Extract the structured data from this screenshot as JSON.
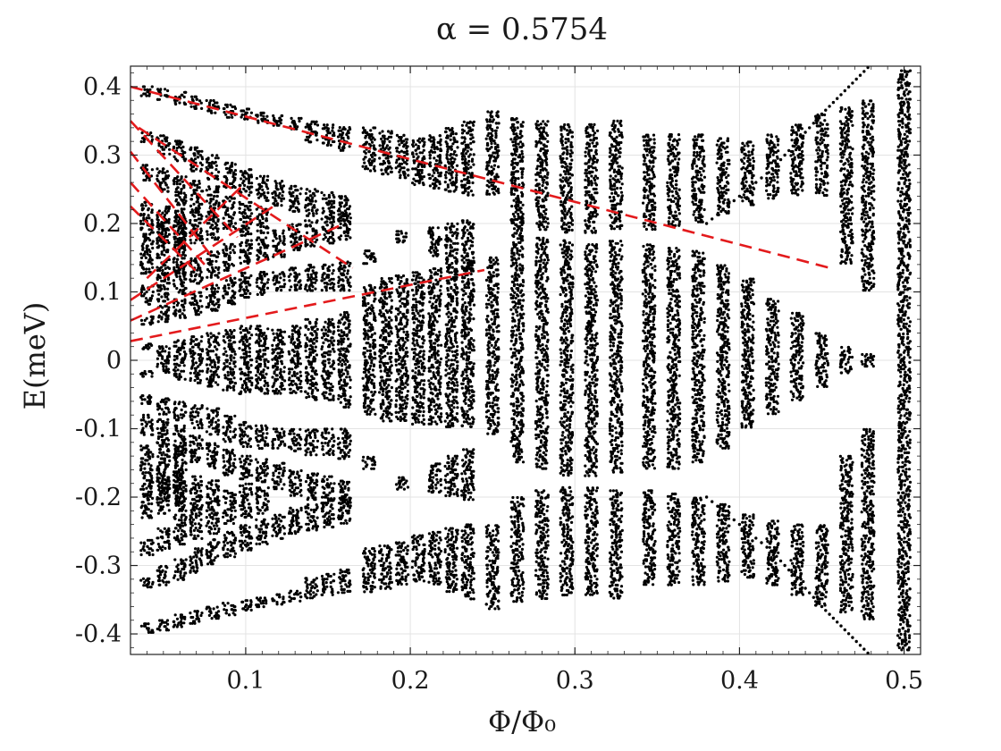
{
  "chart_data": {
    "type": "scatter",
    "title": "α = 0.5754",
    "xlabel": "Φ/Φ₀",
    "ylabel": "E(meV)",
    "xlim": [
      0.03,
      0.51
    ],
    "ylim": [
      -0.43,
      0.43
    ],
    "grid": true,
    "x_ticks": [
      {
        "value": 0.1,
        "label": "0.1"
      },
      {
        "value": 0.2,
        "label": "0.2"
      },
      {
        "value": 0.3,
        "label": "0.3"
      },
      {
        "value": 0.4,
        "label": "0.4"
      },
      {
        "value": 0.5,
        "label": "0.5"
      }
    ],
    "y_ticks": [
      {
        "value": 0.4,
        "label": "0.4"
      },
      {
        "value": 0.3,
        "label": "0.3"
      },
      {
        "value": 0.2,
        "label": "0.2"
      },
      {
        "value": 0.1,
        "label": "0.1"
      },
      {
        "value": 0.0,
        "label": "0"
      },
      {
        "value": -0.1,
        "label": "-0.1"
      },
      {
        "value": -0.2,
        "label": "-0.2"
      },
      {
        "value": -0.3,
        "label": "-0.3"
      },
      {
        "value": -0.4,
        "label": "-0.4"
      }
    ],
    "marker_color": "#000000",
    "band_columns": [
      {
        "x": 0.04,
        "bands": [
          [
            0.385,
            0.4
          ],
          [
            0.318,
            0.334
          ],
          [
            0.262,
            0.286
          ],
          [
            0.195,
            0.232
          ],
          [
            0.125,
            0.2
          ],
          [
            0.08,
            0.11
          ],
          [
            0.05,
            0.065
          ],
          [
            0.015,
            0.025
          ],
          [
            -0.025,
            -0.015
          ],
          [
            -0.065,
            -0.05
          ],
          [
            -0.11,
            -0.08
          ],
          [
            -0.2,
            -0.125
          ],
          [
            -0.232,
            -0.195
          ],
          [
            -0.286,
            -0.262
          ],
          [
            -0.334,
            -0.318
          ],
          [
            -0.4,
            -0.385
          ]
        ]
      },
      {
        "x": 0.05,
        "bands": [
          [
            0.38,
            0.397
          ],
          [
            0.3,
            0.33
          ],
          [
            0.245,
            0.28
          ],
          [
            0.17,
            0.225
          ],
          [
            0.12,
            0.205
          ],
          [
            0.085,
            0.125
          ],
          [
            0.055,
            0.08
          ],
          [
            -0.02,
            0.02
          ],
          [
            -0.08,
            -0.055
          ],
          [
            -0.125,
            -0.085
          ],
          [
            -0.205,
            -0.12
          ],
          [
            -0.225,
            -0.17
          ],
          [
            -0.28,
            -0.245
          ],
          [
            -0.33,
            -0.3
          ],
          [
            -0.397,
            -0.38
          ]
        ]
      },
      {
        "x": 0.06,
        "bands": [
          [
            0.372,
            0.392
          ],
          [
            0.29,
            0.322
          ],
          [
            0.225,
            0.27
          ],
          [
            0.16,
            0.222
          ],
          [
            0.125,
            0.21
          ],
          [
            0.095,
            0.14
          ],
          [
            0.06,
            0.09
          ],
          [
            -0.03,
            0.03
          ],
          [
            -0.09,
            -0.06
          ],
          [
            -0.14,
            -0.095
          ],
          [
            -0.21,
            -0.125
          ],
          [
            -0.222,
            -0.16
          ],
          [
            -0.27,
            -0.225
          ],
          [
            -0.322,
            -0.29
          ],
          [
            -0.392,
            -0.372
          ]
        ]
      },
      {
        "x": 0.07,
        "bands": [
          [
            0.366,
            0.386
          ],
          [
            0.275,
            0.312
          ],
          [
            0.215,
            0.262
          ],
          [
            0.17,
            0.22
          ],
          [
            0.11,
            0.15
          ],
          [
            0.065,
            0.1
          ],
          [
            -0.035,
            0.035
          ],
          [
            -0.1,
            -0.065
          ],
          [
            -0.15,
            -0.11
          ],
          [
            -0.22,
            -0.17
          ],
          [
            -0.262,
            -0.215
          ],
          [
            -0.312,
            -0.275
          ],
          [
            -0.386,
            -0.366
          ]
        ]
      },
      {
        "x": 0.08,
        "bands": [
          [
            0.36,
            0.38
          ],
          [
            0.262,
            0.3
          ],
          [
            0.205,
            0.255
          ],
          [
            0.175,
            0.21
          ],
          [
            0.12,
            0.16
          ],
          [
            0.07,
            0.11
          ],
          [
            -0.04,
            0.04
          ],
          [
            -0.11,
            -0.07
          ],
          [
            -0.16,
            -0.12
          ],
          [
            -0.21,
            -0.175
          ],
          [
            -0.255,
            -0.205
          ],
          [
            -0.3,
            -0.262
          ],
          [
            -0.38,
            -0.36
          ]
        ]
      },
      {
        "x": 0.09,
        "bands": [
          [
            0.354,
            0.374
          ],
          [
            0.25,
            0.29
          ],
          [
            0.19,
            0.24
          ],
          [
            0.13,
            0.17
          ],
          [
            0.08,
            0.12
          ],
          [
            -0.045,
            0.045
          ],
          [
            -0.12,
            -0.08
          ],
          [
            -0.17,
            -0.13
          ],
          [
            -0.24,
            -0.19
          ],
          [
            -0.29,
            -0.25
          ],
          [
            -0.374,
            -0.354
          ]
        ]
      },
      {
        "x": 0.1,
        "bands": [
          [
            0.35,
            0.368
          ],
          [
            0.24,
            0.28
          ],
          [
            0.18,
            0.232
          ],
          [
            0.14,
            0.176
          ],
          [
            0.09,
            0.128
          ],
          [
            -0.05,
            0.05
          ],
          [
            -0.128,
            -0.09
          ],
          [
            -0.176,
            -0.14
          ],
          [
            -0.232,
            -0.18
          ],
          [
            -0.28,
            -0.24
          ],
          [
            -0.368,
            -0.35
          ]
        ]
      },
      {
        "x": 0.11,
        "bands": [
          [
            0.346,
            0.362
          ],
          [
            0.232,
            0.27
          ],
          [
            0.185,
            0.225
          ],
          [
            0.145,
            0.18
          ],
          [
            0.095,
            0.13
          ],
          [
            -0.05,
            0.05
          ],
          [
            -0.13,
            -0.095
          ],
          [
            -0.18,
            -0.145
          ],
          [
            -0.225,
            -0.185
          ],
          [
            -0.27,
            -0.232
          ],
          [
            -0.362,
            -0.346
          ]
        ]
      },
      {
        "x": 0.12,
        "bands": [
          [
            0.342,
            0.358
          ],
          [
            0.225,
            0.262
          ],
          [
            0.15,
            0.19
          ],
          [
            0.1,
            0.13
          ],
          [
            -0.05,
            0.045
          ],
          [
            -0.13,
            -0.1
          ],
          [
            -0.19,
            -0.15
          ],
          [
            -0.262,
            -0.225
          ],
          [
            -0.358,
            -0.342
          ]
        ]
      },
      {
        "x": 0.13,
        "bands": [
          [
            0.336,
            0.354
          ],
          [
            0.215,
            0.255
          ],
          [
            0.16,
            0.2
          ],
          [
            0.1,
            0.135
          ],
          [
            -0.05,
            0.05
          ],
          [
            -0.135,
            -0.1
          ],
          [
            -0.2,
            -0.16
          ],
          [
            -0.255,
            -0.215
          ],
          [
            -0.354,
            -0.336
          ]
        ]
      },
      {
        "x": 0.14,
        "bands": [
          [
            0.318,
            0.35
          ],
          [
            0.21,
            0.25
          ],
          [
            0.165,
            0.205
          ],
          [
            0.1,
            0.14
          ],
          [
            -0.06,
            0.06
          ],
          [
            -0.14,
            -0.1
          ],
          [
            -0.205,
            -0.165
          ],
          [
            -0.25,
            -0.21
          ],
          [
            -0.35,
            -0.318
          ]
        ]
      },
      {
        "x": 0.15,
        "bands": [
          [
            0.312,
            0.345
          ],
          [
            0.205,
            0.245
          ],
          [
            0.17,
            0.21
          ],
          [
            0.1,
            0.14
          ],
          [
            -0.06,
            0.06
          ],
          [
            -0.14,
            -0.1
          ],
          [
            -0.21,
            -0.17
          ],
          [
            -0.245,
            -0.205
          ],
          [
            -0.345,
            -0.312
          ]
        ]
      },
      {
        "x": 0.16,
        "bands": [
          [
            0.305,
            0.342
          ],
          [
            0.2,
            0.24
          ],
          [
            0.175,
            0.215
          ],
          [
            0.1,
            0.145
          ],
          [
            -0.07,
            0.07
          ],
          [
            -0.145,
            -0.1
          ],
          [
            -0.215,
            -0.175
          ],
          [
            -0.24,
            -0.2
          ],
          [
            -0.342,
            -0.305
          ]
        ]
      },
      {
        "x": 0.175,
        "bands": [
          [
            0.275,
            0.34
          ],
          [
            0.14,
            0.16
          ],
          [
            -0.08,
            0.11
          ],
          [
            -0.16,
            -0.14
          ],
          [
            -0.34,
            -0.275
          ]
        ]
      },
      {
        "x": 0.185,
        "bands": [
          [
            0.27,
            0.335
          ],
          [
            -0.09,
            0.12
          ],
          [
            -0.335,
            -0.27
          ]
        ]
      },
      {
        "x": 0.195,
        "bands": [
          [
            0.265,
            0.33
          ],
          [
            0.17,
            0.19
          ],
          [
            -0.09,
            0.125
          ],
          [
            -0.19,
            -0.17
          ],
          [
            -0.33,
            -0.265
          ]
        ]
      },
      {
        "x": 0.205,
        "bands": [
          [
            0.255,
            0.325
          ],
          [
            -0.095,
            0.13
          ],
          [
            -0.325,
            -0.255
          ]
        ]
      },
      {
        "x": 0.215,
        "bands": [
          [
            0.25,
            0.33
          ],
          [
            0.15,
            0.195
          ],
          [
            -0.095,
            0.135
          ],
          [
            -0.195,
            -0.15
          ],
          [
            -0.33,
            -0.25
          ]
        ]
      },
      {
        "x": 0.225,
        "bands": [
          [
            0.245,
            0.34
          ],
          [
            0.14,
            0.2
          ],
          [
            -0.1,
            0.14
          ],
          [
            -0.2,
            -0.14
          ],
          [
            -0.34,
            -0.245
          ]
        ]
      },
      {
        "x": 0.235,
        "bands": [
          [
            0.24,
            0.35
          ],
          [
            0.13,
            0.205
          ],
          [
            -0.1,
            0.145
          ],
          [
            -0.205,
            -0.13
          ],
          [
            -0.35,
            -0.24
          ]
        ]
      },
      {
        "x": 0.25,
        "bands": [
          [
            0.24,
            0.365
          ],
          [
            -0.11,
            0.15
          ],
          [
            -0.365,
            -0.24
          ]
        ]
      },
      {
        "x": 0.265,
        "bands": [
          [
            0.2,
            0.355
          ],
          [
            -0.15,
            0.21
          ],
          [
            -0.355,
            -0.2
          ]
        ]
      },
      {
        "x": 0.28,
        "bands": [
          [
            0.19,
            0.35
          ],
          [
            -0.16,
            0.18
          ],
          [
            -0.35,
            -0.19
          ]
        ]
      },
      {
        "x": 0.295,
        "bands": [
          [
            0.185,
            0.345
          ],
          [
            -0.17,
            0.175
          ],
          [
            -0.345,
            -0.185
          ]
        ]
      },
      {
        "x": 0.31,
        "bands": [
          [
            0.185,
            0.345
          ],
          [
            -0.17,
            0.17
          ],
          [
            -0.345,
            -0.185
          ]
        ]
      },
      {
        "x": 0.325,
        "bands": [
          [
            0.19,
            0.35
          ],
          [
            -0.165,
            0.175
          ],
          [
            -0.35,
            -0.19
          ]
        ]
      },
      {
        "x": 0.345,
        "bands": [
          [
            0.19,
            0.33
          ],
          [
            -0.16,
            0.17
          ],
          [
            -0.33,
            -0.19
          ]
        ]
      },
      {
        "x": 0.36,
        "bands": [
          [
            0.195,
            0.33
          ],
          [
            -0.16,
            0.165
          ],
          [
            -0.33,
            -0.195
          ]
        ]
      },
      {
        "x": 0.375,
        "bands": [
          [
            0.2,
            0.33
          ],
          [
            -0.15,
            0.16
          ],
          [
            -0.33,
            -0.2
          ]
        ]
      },
      {
        "x": 0.39,
        "bands": [
          [
            0.21,
            0.325
          ],
          [
            -0.13,
            0.14
          ],
          [
            -0.325,
            -0.21
          ]
        ]
      },
      {
        "x": 0.405,
        "bands": [
          [
            0.225,
            0.32
          ],
          [
            -0.1,
            0.12
          ],
          [
            -0.32,
            -0.225
          ]
        ]
      },
      {
        "x": 0.42,
        "bands": [
          [
            0.235,
            0.33
          ],
          [
            -0.08,
            0.09
          ],
          [
            -0.33,
            -0.235
          ]
        ]
      },
      {
        "x": 0.435,
        "bands": [
          [
            0.24,
            0.345
          ],
          [
            -0.06,
            0.07
          ],
          [
            -0.345,
            -0.24
          ]
        ]
      },
      {
        "x": 0.45,
        "bands": [
          [
            0.24,
            0.36
          ],
          [
            -0.04,
            0.04
          ],
          [
            -0.36,
            -0.24
          ]
        ]
      },
      {
        "x": 0.465,
        "bands": [
          [
            0.14,
            0.37
          ],
          [
            -0.02,
            0.02
          ],
          [
            -0.37,
            -0.14
          ]
        ]
      },
      {
        "x": 0.478,
        "bands": [
          [
            0.1,
            0.38
          ],
          [
            -0.01,
            0.01
          ],
          [
            -0.38,
            -0.1
          ]
        ]
      },
      {
        "x": 0.5,
        "bands": [
          [
            -0.425,
            0.425
          ]
        ]
      }
    ],
    "reference_lines": {
      "color": "#e31a1c",
      "style": "dashed",
      "lines": [
        [
          [
            0.03,
            0.4
          ],
          [
            0.455,
            0.135
          ]
        ],
        [
          [
            0.03,
            0.35
          ],
          [
            0.095,
            0.18
          ]
        ],
        [
          [
            0.03,
            0.305
          ],
          [
            0.08,
            0.15
          ]
        ],
        [
          [
            0.03,
            0.26
          ],
          [
            0.075,
            0.14
          ]
        ],
        [
          [
            0.03,
            0.225
          ],
          [
            0.07,
            0.13
          ]
        ],
        [
          [
            0.03,
            0.028
          ],
          [
            0.245,
            0.132
          ]
        ],
        [
          [
            0.03,
            0.058
          ],
          [
            0.16,
            0.2
          ]
        ],
        [
          [
            0.03,
            0.088
          ],
          [
            0.12,
            0.23
          ]
        ],
        [
          [
            0.04,
            0.12
          ],
          [
            0.1,
            0.26
          ]
        ],
        [
          [
            0.035,
            0.34
          ],
          [
            0.165,
            0.135
          ]
        ]
      ]
    },
    "edge_curves": [
      [
        [
          0.38,
          0.2
        ],
        [
          0.42,
          0.28
        ],
        [
          0.45,
          0.36
        ],
        [
          0.478,
          0.428
        ]
      ],
      [
        [
          0.38,
          -0.2
        ],
        [
          0.42,
          -0.28
        ],
        [
          0.45,
          -0.36
        ],
        [
          0.478,
          -0.428
        ]
      ]
    ]
  }
}
